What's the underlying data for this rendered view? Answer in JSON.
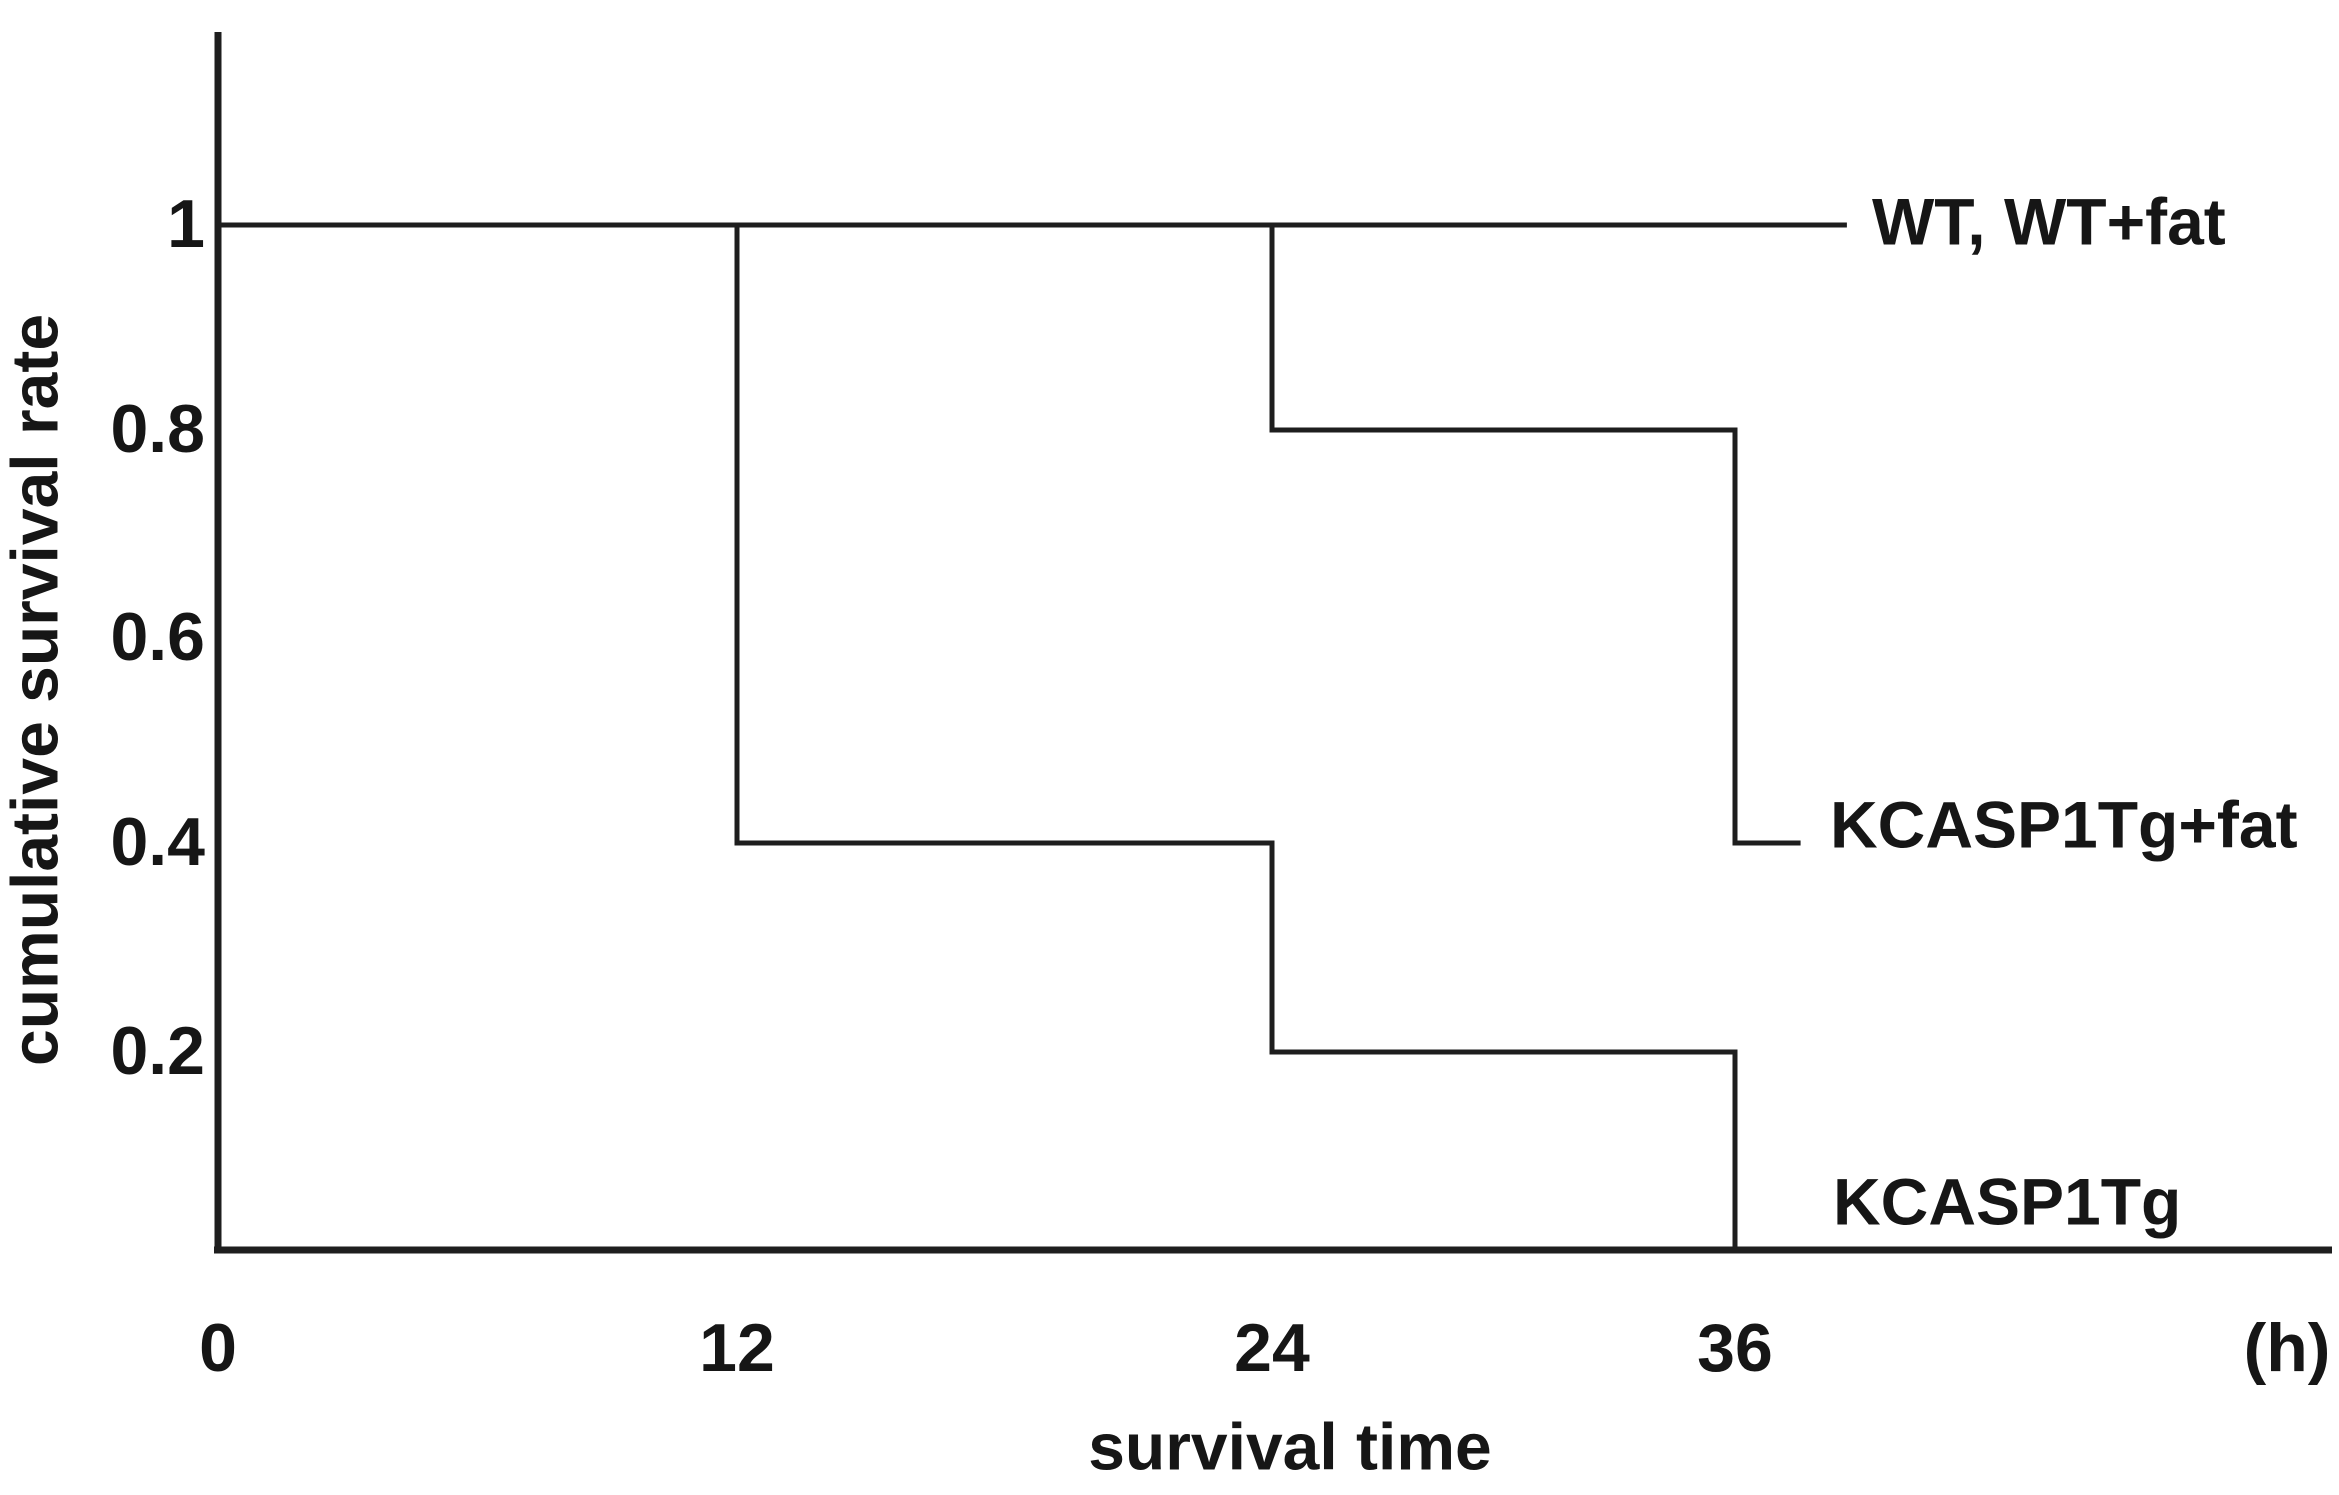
{
  "figure": {
    "background_color": "#ffffff",
    "line_color": "#1e1e1e",
    "text_color": "#161616"
  },
  "chart_data": {
    "type": "line",
    "subtype": "step-survival-curve",
    "title": "",
    "xlabel": "survival time",
    "x_unit_label": "(h)",
    "ylabel": "cumulative survival rate",
    "x_ticks": [
      0,
      12,
      24,
      36
    ],
    "y_ticks": [
      1,
      0.8,
      0.6,
      0.4,
      0.2
    ],
    "xlim": [
      0,
      51
    ],
    "ylim": [
      0,
      1.18
    ],
    "grid": false,
    "legend_position": "right-end-of-lines",
    "series": [
      {
        "name": "WT, WT+fat",
        "survival_steps": [
          {
            "time_h": 0,
            "rate": 1.0
          }
        ],
        "points": [
          [
            0,
            1.0
          ],
          [
            38.9,
            1.0
          ]
        ]
      },
      {
        "name": "KCASP1Tg+fat",
        "survival_steps": [
          {
            "time_h": 0,
            "rate": 1.0
          },
          {
            "time_h": 24,
            "rate": 0.8
          },
          {
            "time_h": 36,
            "rate": 0.4
          }
        ],
        "points": [
          [
            0,
            1.0
          ],
          [
            24,
            1.0
          ],
          [
            24,
            0.8
          ],
          [
            36,
            0.8
          ],
          [
            36,
            0.4
          ],
          [
            37.7,
            0.4
          ]
        ]
      },
      {
        "name": "KCASP1Tg",
        "survival_steps": [
          {
            "time_h": 0,
            "rate": 1.0
          },
          {
            "time_h": 12,
            "rate": 0.4
          },
          {
            "time_h": 24,
            "rate": 0.2
          },
          {
            "time_h": 36,
            "rate": 0.0
          }
        ],
        "points": [
          [
            0,
            1.0
          ],
          [
            12,
            1.0
          ],
          [
            12,
            0.4
          ],
          [
            24,
            0.4
          ],
          [
            24,
            0.2
          ],
          [
            36,
            0.2
          ],
          [
            36,
            0.0
          ],
          [
            51.4,
            0.0
          ]
        ]
      }
    ]
  }
}
